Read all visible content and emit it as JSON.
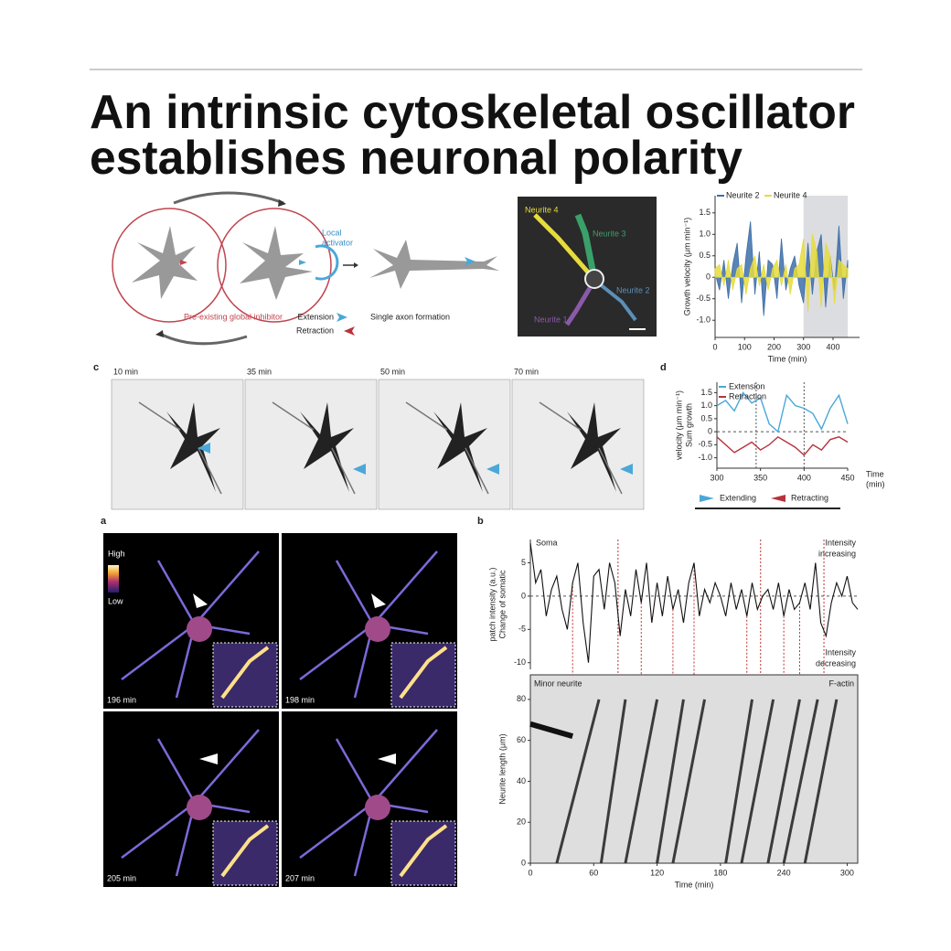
{
  "header": {
    "title_lines": [
      "An intrinsic cytoskeletal oscillator",
      "establishes neuronal polarity"
    ]
  },
  "diagram": {
    "local_activator": [
      "Local",
      "activator"
    ],
    "extension": "Extension",
    "retraction": "Retraction",
    "global_inhibitor": "Pre-existing global inhibitor",
    "single_axon": "Single axon formation"
  },
  "neurite_image": {
    "labels": [
      "Neurite 4",
      "Neurite 3",
      "Neurite 2",
      "Neurite 1"
    ]
  },
  "panel_labels": {
    "c": "c",
    "d": "d",
    "a": "a",
    "b": "b"
  },
  "timelapse_c": {
    "times": [
      "10 min",
      "35 min",
      "50 min",
      "70 min"
    ]
  },
  "timelapse_a": {
    "scale_high": "High",
    "scale_low": "Low",
    "times": [
      "196 min",
      "198 min",
      "205 min",
      "207 min"
    ]
  },
  "chart_data": [
    {
      "type": "area",
      "ylabel": [
        "Growth velocity (μm min⁻¹)"
      ],
      "xlabel": [
        "Time (min)"
      ],
      "x": [
        0,
        15,
        30,
        45,
        60,
        75,
        90,
        105,
        120,
        135,
        150,
        165,
        180,
        195,
        210,
        225,
        240,
        255,
        270,
        285,
        300,
        315,
        330,
        345,
        360,
        375,
        390,
        405,
        420,
        435,
        450
      ],
      "series": [
        {
          "name": "Neurite 2",
          "color": "#3d6ea8",
          "values": [
            0.1,
            -0.3,
            0.4,
            -0.5,
            0.3,
            0.8,
            -0.6,
            0.5,
            1.3,
            -0.4,
            0.6,
            -0.9,
            0.4,
            0.3,
            -0.5,
            0.9,
            -0.3,
            0.2,
            0.5,
            -0.2,
            -0.6,
            0.8,
            -0.4,
            0.6,
            1.0,
            -0.7,
            0.5,
            -0.3,
            1.2,
            -0.5,
            0.4
          ]
        },
        {
          "name": "Neurite 4",
          "color": "#e6dc3c",
          "values": [
            0.2,
            0.3,
            -0.2,
            0.4,
            -0.3,
            0.2,
            0.3,
            -0.4,
            0.2,
            0.5,
            -0.2,
            0.3,
            -0.3,
            0.2,
            0.4,
            -0.2,
            0.3,
            -0.4,
            0.2,
            0.3,
            0.9,
            -0.8,
            1.0,
            0.6,
            -0.7,
            0.8,
            0.5,
            -0.6,
            0.4,
            0.3,
            0.2
          ]
        }
      ],
      "xlim": [
        0,
        490
      ],
      "ylim": [
        -1.4,
        1.9
      ],
      "xticks": [
        0,
        100,
        200,
        300,
        400
      ],
      "yticks": [
        {
          "value": -1,
          "label": "-1.0"
        },
        -0.5,
        0,
        0.5,
        {
          "value": 1,
          "label": "1.0"
        },
        1.5
      ],
      "shaded": [
        300,
        450
      ]
    },
    {
      "type": "line",
      "ylabel": [
        "Sum growth",
        "velocity (μm min⁻¹)"
      ],
      "xlabel": [
        "Time",
        "(min)"
      ],
      "x": [
        300,
        310,
        320,
        330,
        340,
        350,
        360,
        370,
        380,
        390,
        400,
        410,
        420,
        430,
        440,
        450
      ],
      "series": [
        {
          "name": "Extension",
          "color": "#4aa8d8",
          "values": [
            1.0,
            1.2,
            0.8,
            1.5,
            1.1,
            1.3,
            0.3,
            0.0,
            1.4,
            1.0,
            0.9,
            0.7,
            0.1,
            0.9,
            1.4,
            0.3
          ]
        },
        {
          "name": "Retraction",
          "color": "#b8323c",
          "values": [
            -0.2,
            -0.5,
            -0.8,
            -0.6,
            -0.4,
            -0.7,
            -0.5,
            -0.2,
            -0.4,
            -0.6,
            -0.9,
            -0.5,
            -0.7,
            -0.3,
            -0.2,
            -0.4
          ]
        }
      ],
      "xlim": [
        300,
        450
      ],
      "ylim": [
        -1.4,
        1.9
      ],
      "xticks": [
        300,
        350,
        400,
        450
      ],
      "yticks": [
        {
          "value": 1.5,
          "label": "1.5"
        },
        {
          "value": 1,
          "label": "1.0"
        },
        0.5,
        0,
        -0.5,
        {
          "value": -1,
          "label": "-1.0"
        }
      ],
      "zero_line": true,
      "markers": [
        345,
        400
      ],
      "state_legend": [
        {
          "name": "Extending",
          "color": "#4aa8d8"
        },
        {
          "name": "Retracting",
          "color": "#b8323c"
        }
      ]
    },
    {
      "type": "line",
      "ylabel": [
        "Change of somatic",
        "patch intensity (a.u.)"
      ],
      "annotations": [
        "Soma",
        "Intensity",
        "increasing",
        "Intensity",
        "decreasing"
      ],
      "x": [
        0,
        5,
        10,
        15,
        20,
        25,
        30,
        35,
        40,
        45,
        50,
        55,
        60,
        65,
        70,
        75,
        80,
        85,
        90,
        95,
        100,
        105,
        110,
        115,
        120,
        125,
        130,
        135,
        140,
        145,
        150,
        155,
        160,
        165,
        170,
        175,
        180,
        185,
        190,
        195,
        200,
        205,
        210,
        215,
        220,
        225,
        230,
        235,
        240,
        245,
        250,
        255,
        260,
        265,
        270,
        275,
        280,
        285,
        290,
        295,
        300,
        305,
        310
      ],
      "series": [
        {
          "name": "Soma",
          "color": "#111111",
          "values": [
            8,
            2,
            4,
            -3,
            1,
            3,
            -2,
            -5,
            2,
            5,
            -4,
            -10,
            3,
            4,
            -2,
            5,
            2,
            -6,
            1,
            -3,
            4,
            -1,
            5,
            -4,
            2,
            -3,
            3,
            -2,
            1,
            -4,
            2,
            5,
            -3,
            1,
            -1,
            2,
            0,
            -3,
            2,
            -2,
            1,
            -3,
            2,
            -2,
            0,
            1,
            -2,
            2,
            -3,
            1,
            -2,
            -1,
            2,
            -2,
            5,
            -4,
            -6,
            -1,
            2,
            0,
            3,
            -1,
            -2
          ]
        }
      ],
      "xlim": [
        0,
        310
      ],
      "ylim": [
        -11,
        8.5
      ],
      "yticks": [
        -10,
        -5,
        0,
        5
      ],
      "zero_line": true,
      "markers": [
        40,
        83,
        105,
        135,
        155,
        205,
        218,
        240,
        255,
        278
      ]
    },
    {
      "type": "kymograph",
      "ylabel": [
        "Neurite length (μm)"
      ],
      "xlabel": [
        "Time (min)"
      ],
      "annotations": [
        "Minor neurite",
        "F-actin"
      ],
      "xlim": [
        0,
        310
      ],
      "ylim": [
        0,
        92
      ],
      "xticks": [
        0,
        60,
        120,
        180,
        240,
        300
      ],
      "yticks": [
        0,
        20,
        40,
        60,
        80
      ]
    }
  ]
}
